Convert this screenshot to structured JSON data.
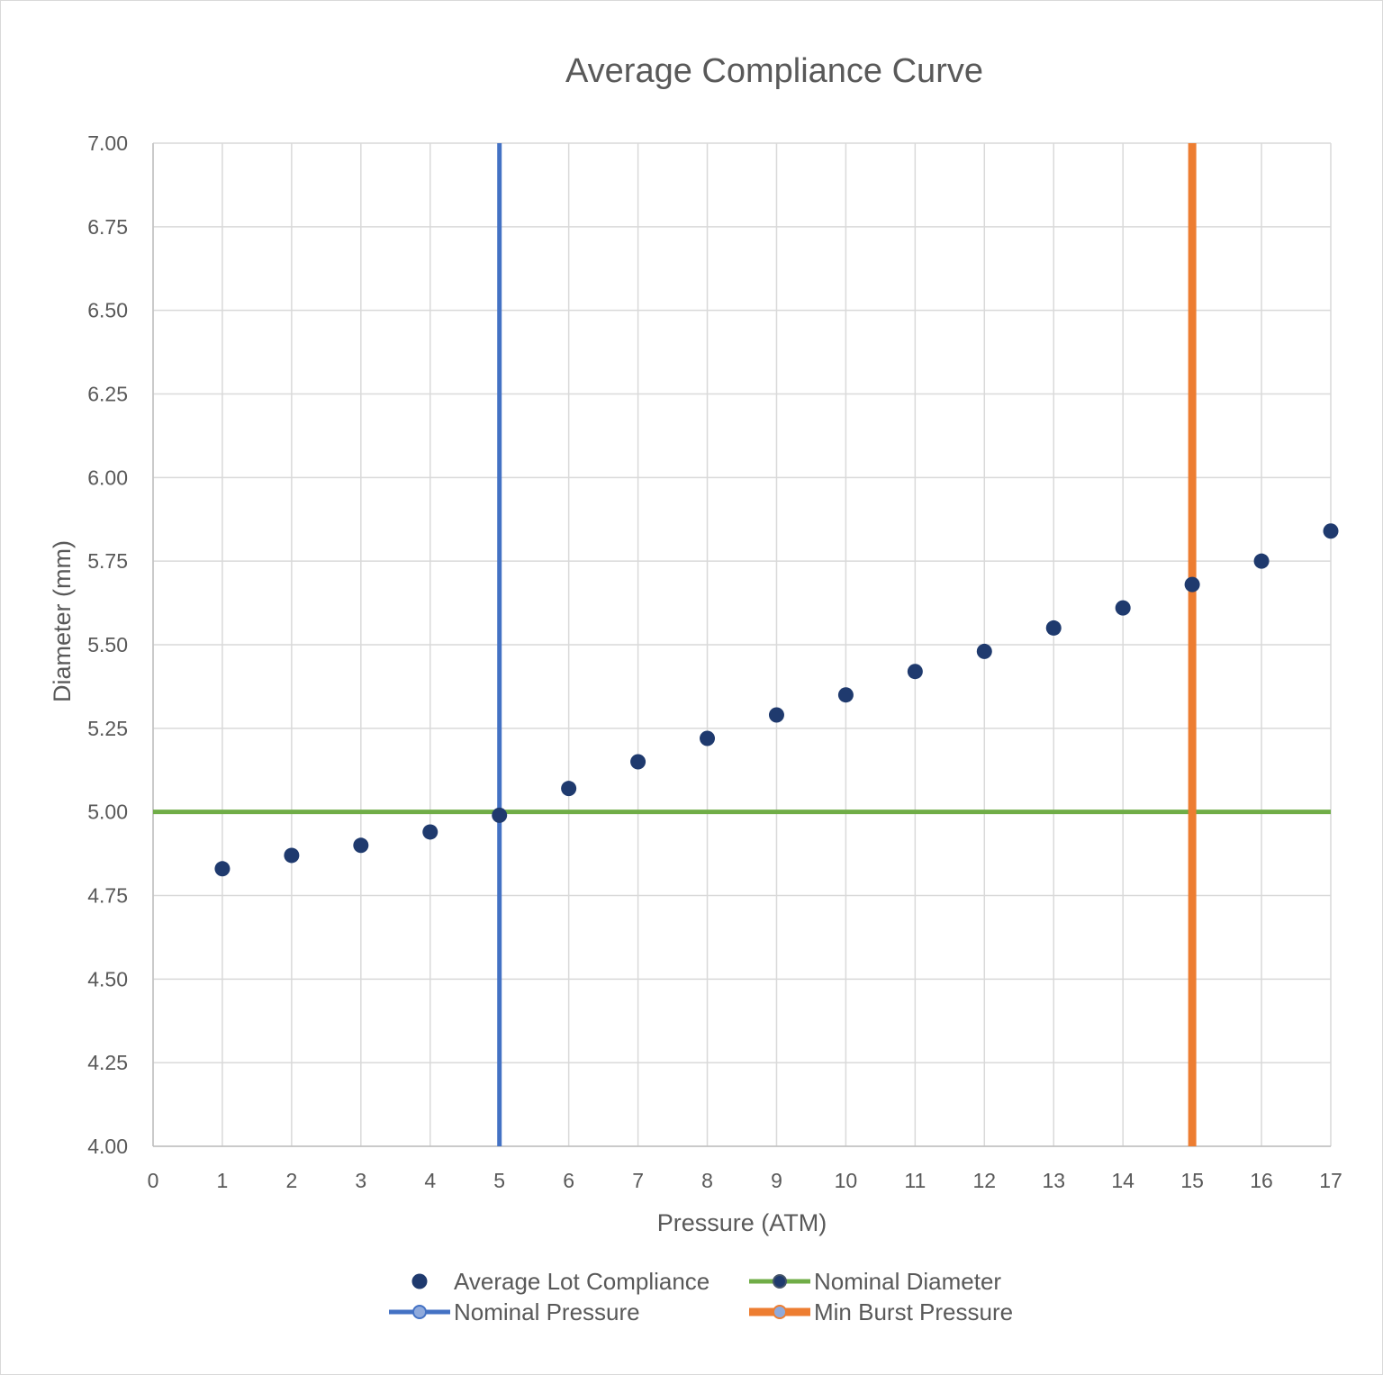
{
  "chart_data": {
    "type": "scatter",
    "title": "Average Compliance Curve",
    "xlabel": "Pressure (ATM)",
    "ylabel": "Diameter (mm)",
    "xlim": [
      0,
      17
    ],
    "ylim": [
      4.0,
      7.0
    ],
    "x_ticks": [
      "0",
      "1",
      "2",
      "3",
      "4",
      "5",
      "6",
      "7",
      "8",
      "9",
      "10",
      "11",
      "12",
      "13",
      "14",
      "15",
      "16",
      "17"
    ],
    "y_ticks": [
      "4.00",
      "4.25",
      "4.50",
      "4.75",
      "5.00",
      "5.25",
      "5.50",
      "5.75",
      "6.00",
      "6.25",
      "6.50",
      "6.75",
      "7.00"
    ],
    "grid": true,
    "legend_position": "bottom",
    "series": [
      {
        "name": "Average Lot Compliance",
        "kind": "points",
        "color": "#1f3a6e",
        "x": [
          1,
          2,
          3,
          4,
          5,
          6,
          7,
          8,
          9,
          10,
          11,
          12,
          13,
          14,
          15,
          16,
          17
        ],
        "y": [
          4.83,
          4.87,
          4.9,
          4.94,
          4.99,
          5.07,
          5.15,
          5.22,
          5.29,
          5.35,
          5.42,
          5.48,
          5.55,
          5.61,
          5.68,
          5.75,
          5.84
        ]
      },
      {
        "name": "Nominal Diameter",
        "kind": "hline",
        "color": "#70ad47",
        "y": 5.0
      },
      {
        "name": "Nominal Pressure",
        "kind": "vline",
        "color": "#4472c4",
        "x": 5
      },
      {
        "name": "Min Burst Pressure",
        "kind": "vline",
        "color": "#ed7d31",
        "x": 15
      }
    ]
  }
}
